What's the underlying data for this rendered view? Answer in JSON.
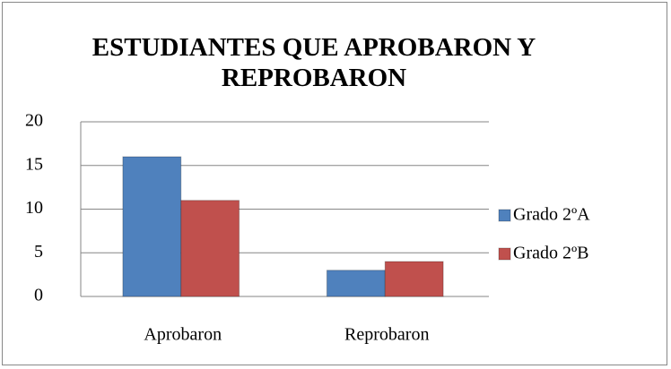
{
  "chart_data": {
    "type": "bar",
    "title": "ESTUDIANTES QUE APROBARON Y REPROBARON",
    "categories": [
      "Aprobaron",
      "Reprobaron"
    ],
    "series": [
      {
        "name": "Grado 2ºA",
        "color": "#4f81bd",
        "values": [
          16,
          3
        ]
      },
      {
        "name": "Grado 2ºB",
        "color": "#c0504d",
        "values": [
          11,
          4
        ]
      }
    ],
    "ylim": [
      0,
      20
    ],
    "yticks": [
      0,
      5,
      10,
      15,
      20
    ],
    "grid": true,
    "legend": "right"
  }
}
